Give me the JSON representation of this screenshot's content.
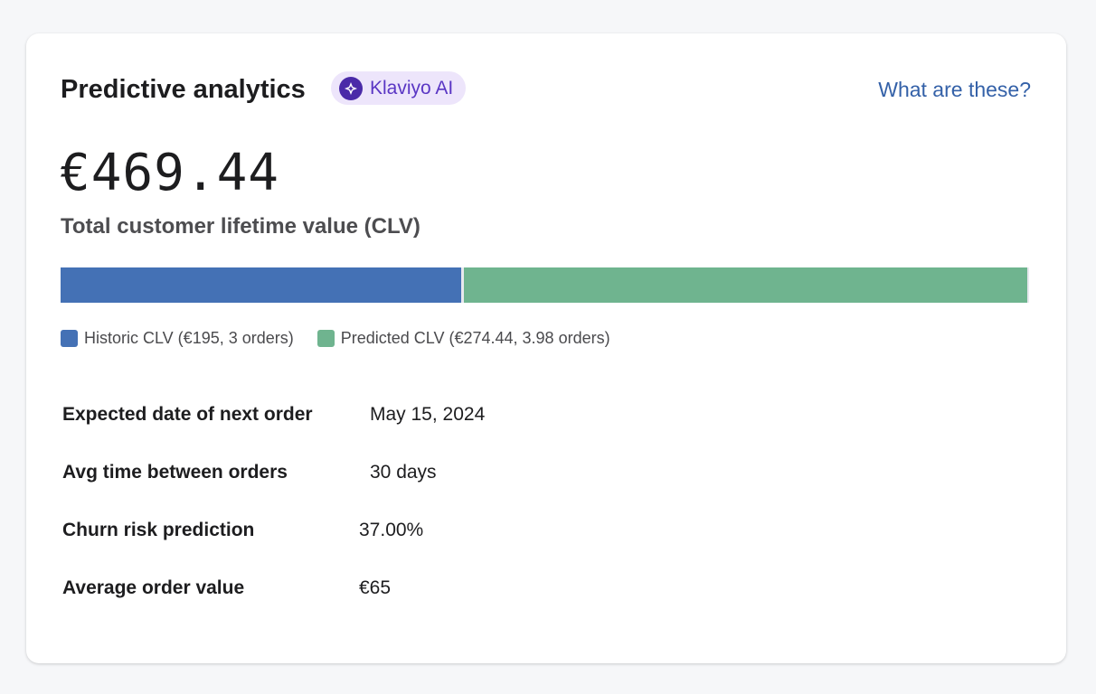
{
  "header": {
    "title": "Predictive analytics",
    "badge_label": "Klaviyo AI",
    "help_link": "What are these?"
  },
  "clv": {
    "total": "€469.44",
    "label": "Total customer lifetime value (CLV)"
  },
  "bar": {
    "total": 469.44,
    "segments": [
      {
        "name": "historic",
        "value": 195,
        "color": "#4471b5",
        "legend": "Historic CLV (€195, 3 orders)"
      },
      {
        "name": "predicted",
        "value": 274.44,
        "color": "#6fb48f",
        "legend": "Predicted CLV (€274.44, 3.98 orders)"
      }
    ]
  },
  "stats": [
    {
      "label": "Expected date of next order",
      "value": "May 15, 2024"
    },
    {
      "label": "Avg time between orders",
      "value": "30 days"
    },
    {
      "label": "Churn risk prediction",
      "value": "37.00%"
    },
    {
      "label": "Average order value",
      "value": "€65"
    }
  ]
}
